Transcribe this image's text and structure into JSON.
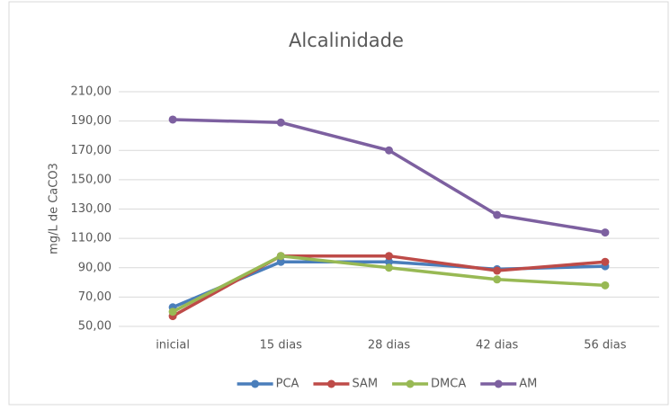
{
  "chart_data": {
    "type": "line",
    "title": "Alcalinidade",
    "y_label": "mg/L de CaCO3",
    "categories": [
      "inicial",
      "15 dias",
      "28 dias",
      "42 dias",
      "56 dias"
    ],
    "series": [
      {
        "name": "PCA",
        "color": "#4a7ebb",
        "values": [
          63,
          94,
          94,
          89,
          91
        ]
      },
      {
        "name": "SAM",
        "color": "#be4b48",
        "values": [
          57,
          98,
          98,
          88,
          94
        ]
      },
      {
        "name": "DMCA",
        "color": "#98b954",
        "values": [
          60,
          98,
          90,
          82,
          78
        ]
      },
      {
        "name": "AM",
        "color": "#7d60a0",
        "values": [
          191,
          189,
          170,
          126,
          114
        ]
      }
    ],
    "ylim": [
      50,
      210
    ],
    "yticks": [
      {
        "value": 50,
        "label": "50,00"
      },
      {
        "value": 70,
        "label": "70,00"
      },
      {
        "value": 90,
        "label": "90,00"
      },
      {
        "value": 110,
        "label": "110,00"
      },
      {
        "value": 130,
        "label": "130,00"
      },
      {
        "value": 150,
        "label": "150,00"
      },
      {
        "value": 170,
        "label": "170,00"
      },
      {
        "value": 190,
        "label": "190,00"
      },
      {
        "value": 210,
        "label": "210,00"
      }
    ],
    "grid": true,
    "legend": "bottom"
  }
}
